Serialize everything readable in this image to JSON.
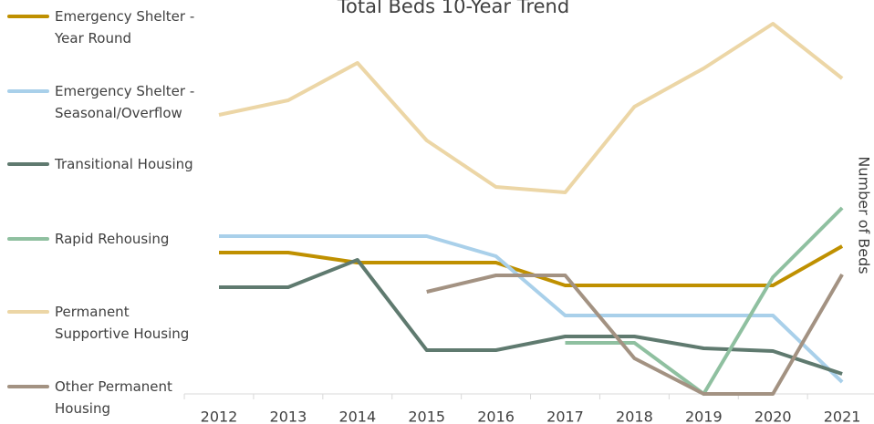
{
  "chart_data": {
    "type": "line",
    "title": "Total Beds 10-Year Trend",
    "y_label": "Number of Beds",
    "categories": [
      "2012",
      "2013",
      "2014",
      "2015",
      "2016",
      "2017",
      "2018",
      "2019",
      "2020",
      "2021"
    ],
    "ylim": [
      0,
      420
    ],
    "series": [
      {
        "name": "Emergency Shelter - Year Round",
        "color": "#bf9000",
        "values": [
          155,
          155,
          144,
          144,
          144,
          119,
          119,
          119,
          119,
          162
        ]
      },
      {
        "name": "Emergency Shelter - Seasonal/Overflow",
        "color": "#a9d0ea",
        "values": [
          173,
          173,
          173,
          173,
          151,
          86,
          86,
          86,
          86,
          13
        ]
      },
      {
        "name": "Transitional Housing",
        "color": "#5f7a6f",
        "values": [
          117,
          117,
          147,
          48,
          48,
          63,
          63,
          50,
          47,
          22
        ]
      },
      {
        "name": "Rapid Rehousing",
        "color": "#8fc0a0",
        "values": [
          null,
          null,
          null,
          null,
          null,
          56,
          56,
          0,
          128,
          204
        ]
      },
      {
        "name": "Permanent Supportive Housing",
        "color": "#ecd6a6",
        "values": [
          306,
          322,
          363,
          278,
          227,
          221,
          315,
          357,
          406,
          346
        ]
      },
      {
        "name": "Other Permanent Housing",
        "color": "#a39282",
        "values": [
          null,
          null,
          null,
          112,
          130,
          130,
          39,
          0,
          0,
          131
        ]
      }
    ]
  }
}
